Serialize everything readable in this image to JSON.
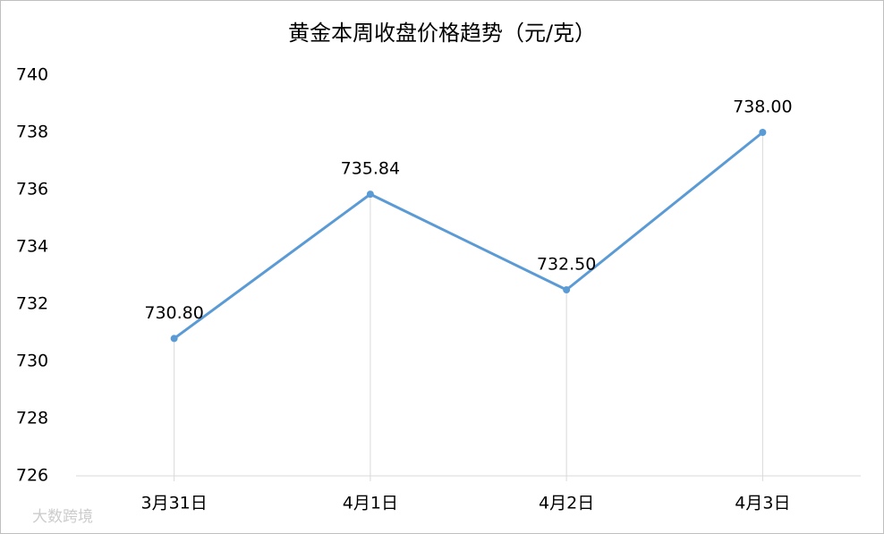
{
  "chart_data": {
    "type": "line",
    "title": "黄金本周收盘价格趋势（元/克）",
    "categories": [
      "3月31日",
      "4月1日",
      "4月2日",
      "4月3日"
    ],
    "values": [
      730.8,
      735.84,
      732.5,
      738.0
    ],
    "value_labels": [
      "730.80",
      "735.84",
      "732.50",
      "738.00"
    ],
    "color": "#5b9bd5",
    "ylim": [
      726,
      740
    ],
    "yticks": [
      726,
      728,
      730,
      732,
      734,
      736,
      738,
      740
    ],
    "drop_lines": true,
    "watermark": "大数跨境"
  }
}
